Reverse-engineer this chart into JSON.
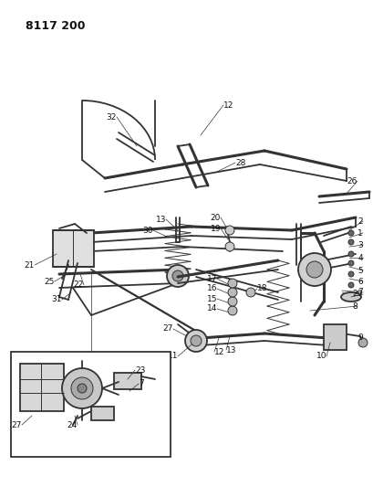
{
  "title": "8117 200",
  "bg_color": "#ffffff",
  "line_color": "#333333",
  "text_color": "#111111",
  "fig_width": 4.1,
  "fig_height": 5.33,
  "dpi": 100,
  "label_fs": 6.5,
  "title_fs": 9.0,
  "lw_thick": 2.2,
  "lw_main": 1.3,
  "lw_thin": 0.7,
  "lw_leader": 0.5
}
